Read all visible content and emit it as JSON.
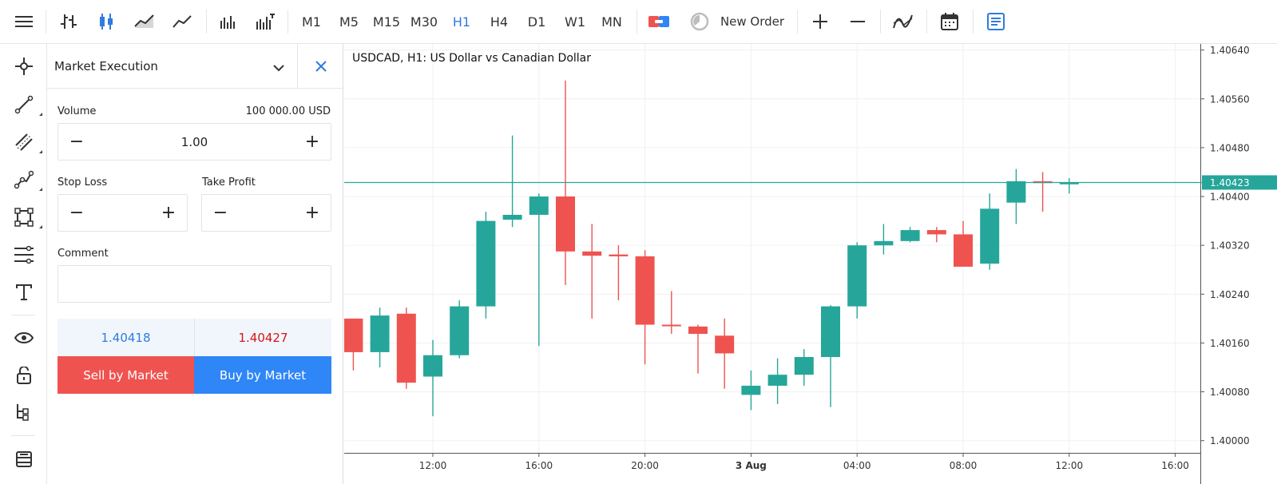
{
  "toolbar": {
    "timeframes": [
      "M1",
      "M5",
      "M15",
      "M30",
      "H1",
      "H4",
      "D1",
      "W1",
      "MN"
    ],
    "active_timeframe": "H1",
    "new_order_label": "New Order",
    "icons": [
      "menu-icon",
      "bar-chart-icon",
      "candlestick-icon",
      "area-chart-icon",
      "line-chart-icon",
      "volume-icon",
      "volume-alt-icon",
      "one-click-trading-icon",
      "clock-icon",
      "zoom-in-icon",
      "zoom-out-icon",
      "indicators-icon",
      "calendar-icon",
      "journal-icon"
    ]
  },
  "left_tools": [
    "crosshair-icon",
    "trendline-icon",
    "channel-icon",
    "polyline-icon",
    "rectangle-icon",
    "fibonacci-icon",
    "text-icon",
    "visibility-icon",
    "lock-icon",
    "object-tree-icon",
    "layers-icon"
  ],
  "order_panel": {
    "title": "Market Execution",
    "volume_label": "Volume",
    "volume_amount": "100 000.00 USD",
    "volume_value": "1.00",
    "stop_loss_label": "Stop Loss",
    "take_profit_label": "Take Profit",
    "comment_label": "Comment",
    "comment_value": "",
    "bid": "1.40418",
    "ask": "1.40427",
    "sell_label": "Sell by Market",
    "buy_label": "Buy by Market",
    "minus": "−",
    "plus": "+"
  },
  "colors": {
    "bull": "#26a69a",
    "bear": "#ef5350",
    "accent": "#2f7be0",
    "price_line": "#26a69a"
  },
  "chart_data": {
    "type": "candlestick",
    "title": "USDCAD, H1: US Dollar vs Canadian Dollar",
    "current_price": "1.40423",
    "ylim": [
      1.3998,
      1.4065
    ],
    "y_ticks": [
      "1.40000",
      "1.40080",
      "1.40160",
      "1.40240",
      "1.40320",
      "1.40400",
      "1.40480",
      "1.40560",
      "1.40640"
    ],
    "x_ticks": [
      "12:00",
      "16:00",
      "20:00",
      "3 Aug",
      "04:00",
      "08:00",
      "12:00",
      "16:00"
    ],
    "x_tick_hours": [
      12,
      16,
      20,
      24,
      28,
      32,
      36,
      40
    ],
    "candles": [
      {
        "h": 9,
        "o": 1.402,
        "hi": 1.402,
        "lo": 1.40115,
        "c": 1.40145
      },
      {
        "h": 10,
        "o": 1.40145,
        "hi": 1.40218,
        "lo": 1.4012,
        "c": 1.40205
      },
      {
        "h": 11,
        "o": 1.40208,
        "hi": 1.40218,
        "lo": 1.40085,
        "c": 1.40095
      },
      {
        "h": 12,
        "o": 1.40105,
        "hi": 1.40165,
        "lo": 1.4004,
        "c": 1.4014
      },
      {
        "h": 13,
        "o": 1.4014,
        "hi": 1.4023,
        "lo": 1.40135,
        "c": 1.4022
      },
      {
        "h": 14,
        "o": 1.4022,
        "hi": 1.40375,
        "lo": 1.402,
        "c": 1.4036
      },
      {
        "h": 15,
        "o": 1.40362,
        "hi": 1.405,
        "lo": 1.4035,
        "c": 1.4037
      },
      {
        "h": 16,
        "o": 1.4037,
        "hi": 1.40405,
        "lo": 1.40155,
        "c": 1.404
      },
      {
        "h": 17,
        "o": 1.404,
        "hi": 1.4059,
        "lo": 1.40255,
        "c": 1.4031
      },
      {
        "h": 18,
        "o": 1.4031,
        "hi": 1.40355,
        "lo": 1.402,
        "c": 1.40303
      },
      {
        "h": 19,
        "o": 1.40305,
        "hi": 1.4032,
        "lo": 1.4023,
        "c": 1.40302
      },
      {
        "h": 20,
        "o": 1.40302,
        "hi": 1.40312,
        "lo": 1.40125,
        "c": 1.4019
      },
      {
        "h": 21,
        "o": 1.4019,
        "hi": 1.40245,
        "lo": 1.40175,
        "c": 1.40188
      },
      {
        "h": 22,
        "o": 1.40187,
        "hi": 1.4019,
        "lo": 1.4011,
        "c": 1.40175
      },
      {
        "h": 23,
        "o": 1.40172,
        "hi": 1.402,
        "lo": 1.40085,
        "c": 1.40143
      },
      {
        "h": 24,
        "o": 1.40075,
        "hi": 1.40115,
        "lo": 1.4005,
        "c": 1.4009
      },
      {
        "h": 25,
        "o": 1.4009,
        "hi": 1.40135,
        "lo": 1.4006,
        "c": 1.40108
      },
      {
        "h": 26,
        "o": 1.40108,
        "hi": 1.4015,
        "lo": 1.4009,
        "c": 1.40137
      },
      {
        "h": 27,
        "o": 1.40137,
        "hi": 1.40222,
        "lo": 1.40055,
        "c": 1.4022
      },
      {
        "h": 28,
        "o": 1.4022,
        "hi": 1.40325,
        "lo": 1.402,
        "c": 1.4032
      },
      {
        "h": 29,
        "o": 1.4032,
        "hi": 1.40355,
        "lo": 1.40305,
        "c": 1.40327
      },
      {
        "h": 30,
        "o": 1.40327,
        "hi": 1.4035,
        "lo": 1.40325,
        "c": 1.40345
      },
      {
        "h": 31,
        "o": 1.40345,
        "hi": 1.4035,
        "lo": 1.40325,
        "c": 1.40338
      },
      {
        "h": 32,
        "o": 1.40338,
        "hi": 1.4036,
        "lo": 1.40285,
        "c": 1.40285
      },
      {
        "h": 33,
        "o": 1.4029,
        "hi": 1.40405,
        "lo": 1.4028,
        "c": 1.4038
      },
      {
        "h": 34,
        "o": 1.4039,
        "hi": 1.40445,
        "lo": 1.40355,
        "c": 1.40425
      },
      {
        "h": 35,
        "o": 1.40425,
        "hi": 1.4044,
        "lo": 1.40375,
        "c": 1.40422
      },
      {
        "h": 36,
        "o": 1.4042,
        "hi": 1.4043,
        "lo": 1.40405,
        "c": 1.40423
      }
    ]
  }
}
